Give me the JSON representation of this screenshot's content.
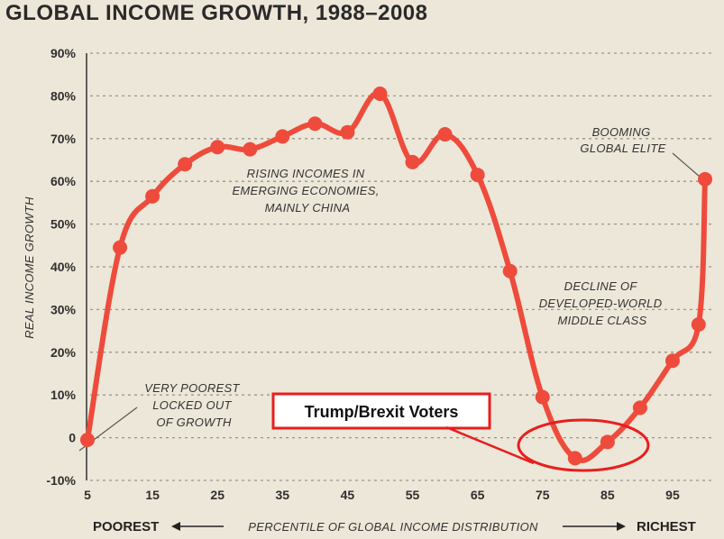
{
  "title": "GLOBAL INCOME GROWTH, 1988–2008",
  "chart_data": {
    "type": "line",
    "title": "GLOBAL INCOME GROWTH, 1988–2008",
    "ylabel": "REAL INCOME GROWTH",
    "xlabel": "PERCENTILE OF GLOBAL INCOME DISTRIBUTION",
    "x_left_label": "POOREST",
    "x_right_label": "RICHEST",
    "ylim": [
      -10,
      90
    ],
    "xlim": [
      5,
      100
    ],
    "yticks": [
      -10,
      0,
      10,
      20,
      30,
      40,
      50,
      60,
      70,
      80,
      90
    ],
    "ytick_labels": [
      "-10%",
      "0",
      "10%",
      "20%",
      "30%",
      "40%",
      "50%",
      "60%",
      "70%",
      "80%",
      "90%"
    ],
    "xticks": [
      5,
      15,
      25,
      35,
      45,
      55,
      65,
      75,
      85,
      95
    ],
    "xtick_labels": [
      "5",
      "15",
      "25",
      "35",
      "45",
      "55",
      "65",
      "75",
      "85",
      "95"
    ],
    "grid": true,
    "line_color": "#ee4b3c",
    "series": [
      {
        "x": [
          5,
          10,
          15,
          20,
          25,
          30,
          35,
          40,
          45,
          50,
          55,
          60,
          65,
          70,
          75,
          80,
          85,
          90,
          95,
          99,
          100
        ],
        "values": [
          -0.5,
          44.5,
          56.5,
          64,
          68,
          67.5,
          70.5,
          73.5,
          71.5,
          80.5,
          64.5,
          71,
          61.5,
          39,
          9.5,
          -4.8,
          -1,
          7,
          18,
          26.5,
          60.5
        ]
      }
    ],
    "annotations": [
      {
        "id": "rising",
        "lines": [
          "RISING INCOMES IN",
          "EMERGING ECONOMIES,",
          "MAINLY CHINA"
        ]
      },
      {
        "id": "booming",
        "lines": [
          "BOOMING",
          "GLOBAL ELITE"
        ]
      },
      {
        "id": "decline",
        "lines": [
          "DECLINE OF",
          "DEVELOPED-WORLD",
          "MIDDLE CLASS"
        ]
      },
      {
        "id": "poorest",
        "lines": [
          "VERY POOREST",
          "LOCKED OUT",
          "OF GROWTH"
        ]
      }
    ],
    "callout": {
      "label": "Trump/Brexit Voters",
      "color": "#e81e1e"
    }
  }
}
